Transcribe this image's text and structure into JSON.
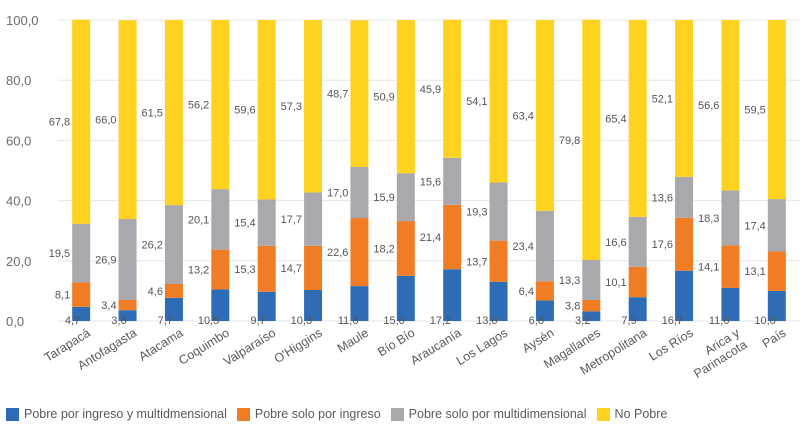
{
  "chart_data": {
    "type": "bar",
    "stacked": true,
    "title": "",
    "xlabel": "",
    "ylabel": "",
    "ylim": [
      0,
      100
    ],
    "yticks": [
      "0,0",
      "20,0",
      "40,0",
      "60,0",
      "80,0",
      "100,0"
    ],
    "grid": true,
    "legend_position": "bottom",
    "categories": [
      "Tarapacá",
      "Antofagasta",
      "Atacama",
      "Coquimbo",
      "Valparaíso",
      "O'Higgins",
      "Maule",
      "Bío Bío",
      "Araucanía",
      "Los Lagos",
      "Aysén",
      "Magallanes",
      "Metropolitana",
      "Los Ríos",
      "Arica y Parinacota",
      "País"
    ],
    "series": [
      {
        "name": "Pobre por ingreso y multidmensional",
        "color": "#2e6db5",
        "values": [
          4.7,
          3.6,
          7.7,
          10.5,
          9.7,
          10.3,
          11.6,
          15.0,
          17.2,
          13.0,
          6.8,
          3.2,
          7.9,
          16.7,
          11.0,
          10.0
        ],
        "labels": [
          "4,7",
          "3,6",
          "7,7",
          "10,5",
          "9,7",
          "10,3",
          "11,6",
          "15,0",
          "17,2",
          "13,0",
          "6,8",
          "3,2",
          "7,9",
          "16,7",
          "11,0",
          "10,0"
        ]
      },
      {
        "name": "Pobre solo por ingreso",
        "color": "#f07c26",
        "values": [
          8.1,
          3.4,
          4.6,
          13.2,
          15.3,
          14.7,
          22.6,
          18.2,
          21.4,
          13.7,
          6.4,
          3.8,
          10.1,
          17.6,
          14.1,
          13.1
        ],
        "labels": [
          "8,1",
          "3,4",
          "4,6",
          "13,2",
          "15,3",
          "14,7",
          "22,6",
          "18,2",
          "21,4",
          "13,7",
          "6,4",
          "3,8",
          "10,1",
          "17,6",
          "14,1",
          "13,1"
        ]
      },
      {
        "name": "Pobre solo por multidimensional",
        "color": "#a9a9ad",
        "values": [
          19.5,
          26.9,
          26.2,
          20.1,
          15.4,
          17.7,
          17.0,
          15.9,
          15.6,
          19.3,
          23.4,
          13.3,
          16.6,
          13.6,
          18.3,
          17.4
        ],
        "labels": [
          "19,5",
          "26,9",
          "26,2",
          "20,1",
          "15,4",
          "17,7",
          "17,0",
          "15,9",
          "15,6",
          "19,3",
          "23,4",
          "13,3",
          "16,6",
          "13,6",
          "18,3",
          "17,4"
        ]
      },
      {
        "name": "No Pobre",
        "color": "#ffd21f",
        "values": [
          67.8,
          66.0,
          61.5,
          56.2,
          59.6,
          57.3,
          48.7,
          50.9,
          45.9,
          54.1,
          63.4,
          79.8,
          65.4,
          52.1,
          56.6,
          59.5
        ],
        "labels": [
          "67,8",
          "66,0",
          "61,5",
          "56,2",
          "59,6",
          "57,3",
          "48,7",
          "50,9",
          "45,9",
          "54,1",
          "63,4",
          "79,8",
          "65,4",
          "52,1",
          "56,6",
          "59,5"
        ]
      }
    ]
  }
}
